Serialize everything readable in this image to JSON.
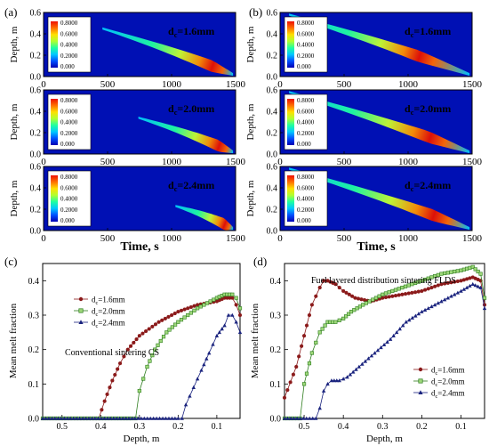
{
  "panel_labels": {
    "a": "(a)",
    "b": "(b)",
    "c": "(c)",
    "d": "(d)"
  },
  "colors": {
    "map_background": "#0010b4",
    "colorbar": [
      "#0000b4",
      "#0050ff",
      "#00c8ff",
      "#20ffa0",
      "#b0ff30",
      "#ffe000",
      "#ff7000",
      "#ee1000"
    ],
    "series": [
      "#8b1a1a",
      "#2e7d1e",
      "#1a237e"
    ]
  },
  "heatmaps": {
    "xlabel": "Time, s",
    "ylabel": "Depth, m",
    "x_ticks": [
      "0",
      "500",
      "1000",
      "1500"
    ],
    "y_ticks": [
      "0.0",
      "0.2",
      "0.4",
      "0.6"
    ],
    "colorbar_ticks": [
      "0.8000",
      "0.6000",
      "0.4000",
      "0.2000",
      "0.000"
    ],
    "colorbar_range": [
      0,
      0.8
    ],
    "panels": [
      {
        "id": "a1",
        "column": "a",
        "label": "dc=1.6mm",
        "band": {
          "start": [
            460,
            0.45
          ],
          "end": [
            1480,
            0.02
          ],
          "peak_at": 0.84
        }
      },
      {
        "id": "a2",
        "column": "a",
        "label": "dc=2.0mm",
        "band": {
          "start": [
            740,
            0.34
          ],
          "end": [
            1480,
            0.02
          ],
          "peak_at": 0.85
        }
      },
      {
        "id": "a3",
        "column": "a",
        "label": "dc=2.4mm",
        "band": {
          "start": [
            1030,
            0.23
          ],
          "end": [
            1480,
            0.02
          ],
          "peak_at": 0.85
        }
      },
      {
        "id": "b1",
        "column": "b",
        "label": "dc=1.6mm",
        "band": {
          "start": [
            70,
            0.58
          ],
          "end": [
            1480,
            0.02
          ],
          "peak_at": 0.72
        }
      },
      {
        "id": "b2",
        "column": "b",
        "label": "dc=2.0mm",
        "band": {
          "start": [
            70,
            0.58
          ],
          "end": [
            1480,
            0.02
          ],
          "peak_at": 0.78
        }
      },
      {
        "id": "b3",
        "column": "b",
        "label": "dc=2.4mm",
        "band": {
          "start": [
            70,
            0.58
          ],
          "end": [
            1480,
            0.02
          ],
          "peak_at": 0.8
        }
      }
    ]
  },
  "chart_data": [
    {
      "type": "line",
      "panel": "c",
      "annotation": "Conventional sintering CS",
      "xlabel": "Depth, m",
      "ylabel": "Mean melt fraction",
      "xlim": [
        0.55,
        0.04
      ],
      "ylim": [
        0.0,
        0.45
      ],
      "x_ticks": [
        0.5,
        0.4,
        0.3,
        0.2,
        0.1
      ],
      "y_ticks": [
        0.0,
        0.1,
        0.2,
        0.3,
        0.4
      ],
      "legend_position": "top-left",
      "series": [
        {
          "name": "dc=1.6mm",
          "marker": "circle",
          "points": [
            [
              0.55,
              0
            ],
            [
              0.42,
              0
            ],
            [
              0.405,
              0
            ],
            [
              0.39,
              0.05
            ],
            [
              0.37,
              0.11
            ],
            [
              0.35,
              0.16
            ],
            [
              0.33,
              0.2
            ],
            [
              0.3,
              0.24
            ],
            [
              0.25,
              0.28
            ],
            [
              0.2,
              0.31
            ],
            [
              0.15,
              0.33
            ],
            [
              0.1,
              0.34
            ],
            [
              0.08,
              0.35
            ],
            [
              0.06,
              0.35
            ],
            [
              0.05,
              0.33
            ],
            [
              0.04,
              0.3
            ]
          ]
        },
        {
          "name": "dc=2.0mm",
          "marker": "square",
          "points": [
            [
              0.55,
              0
            ],
            [
              0.32,
              0
            ],
            [
              0.31,
              0
            ],
            [
              0.3,
              0.08
            ],
            [
              0.28,
              0.15
            ],
            [
              0.26,
              0.2
            ],
            [
              0.23,
              0.25
            ],
            [
              0.2,
              0.28
            ],
            [
              0.15,
              0.32
            ],
            [
              0.1,
              0.35
            ],
            [
              0.08,
              0.36
            ],
            [
              0.06,
              0.36
            ],
            [
              0.05,
              0.35
            ],
            [
              0.04,
              0.32
            ]
          ]
        },
        {
          "name": "dc=2.4mm",
          "marker": "triangle",
          "points": [
            [
              0.55,
              0
            ],
            [
              0.2,
              0
            ],
            [
              0.19,
              0
            ],
            [
              0.18,
              0.04
            ],
            [
              0.16,
              0.09
            ],
            [
              0.14,
              0.14
            ],
            [
              0.12,
              0.19
            ],
            [
              0.1,
              0.24
            ],
            [
              0.08,
              0.27
            ],
            [
              0.07,
              0.3
            ],
            [
              0.06,
              0.3
            ],
            [
              0.05,
              0.28
            ],
            [
              0.04,
              0.25
            ]
          ]
        }
      ]
    },
    {
      "type": "line",
      "panel": "d",
      "annotation": "Fuel layered distribution sintering FLDS",
      "xlabel": "Depth, m",
      "ylabel": "Mean melt fraction",
      "xlim": [
        0.55,
        0.04
      ],
      "ylim": [
        0.0,
        0.45
      ],
      "x_ticks": [
        0.5,
        0.4,
        0.3,
        0.2,
        0.1
      ],
      "y_ticks": [
        0.0,
        0.1,
        0.2,
        0.3,
        0.4
      ],
      "legend_position": "bottom-right",
      "series": [
        {
          "name": "dc=1.6mm",
          "marker": "circle",
          "points": [
            [
              0.55,
              0.06
            ],
            [
              0.52,
              0.15
            ],
            [
              0.5,
              0.24
            ],
            [
              0.48,
              0.33
            ],
            [
              0.46,
              0.38
            ],
            [
              0.45,
              0.4
            ],
            [
              0.44,
              0.4
            ],
            [
              0.42,
              0.39
            ],
            [
              0.4,
              0.37
            ],
            [
              0.37,
              0.35
            ],
            [
              0.33,
              0.34
            ],
            [
              0.3,
              0.35
            ],
            [
              0.25,
              0.36
            ],
            [
              0.2,
              0.37
            ],
            [
              0.15,
              0.39
            ],
            [
              0.1,
              0.4
            ],
            [
              0.07,
              0.41
            ],
            [
              0.05,
              0.4
            ],
            [
              0.04,
              0.33
            ]
          ]
        },
        {
          "name": "dc=2.0mm",
          "marker": "square",
          "points": [
            [
              0.55,
              0
            ],
            [
              0.51,
              0
            ],
            [
              0.5,
              0.1
            ],
            [
              0.48,
              0.19
            ],
            [
              0.46,
              0.25
            ],
            [
              0.44,
              0.28
            ],
            [
              0.42,
              0.28
            ],
            [
              0.4,
              0.29
            ],
            [
              0.38,
              0.31
            ],
            [
              0.35,
              0.33
            ],
            [
              0.3,
              0.36
            ],
            [
              0.25,
              0.38
            ],
            [
              0.2,
              0.4
            ],
            [
              0.15,
              0.42
            ],
            [
              0.1,
              0.43
            ],
            [
              0.07,
              0.44
            ],
            [
              0.05,
              0.42
            ],
            [
              0.04,
              0.35
            ]
          ]
        },
        {
          "name": "dc=2.4mm",
          "marker": "triangle",
          "points": [
            [
              0.55,
              0
            ],
            [
              0.47,
              0
            ],
            [
              0.46,
              0.03
            ],
            [
              0.45,
              0.08
            ],
            [
              0.44,
              0.1
            ],
            [
              0.43,
              0.11
            ],
            [
              0.41,
              0.11
            ],
            [
              0.39,
              0.12
            ],
            [
              0.36,
              0.15
            ],
            [
              0.32,
              0.19
            ],
            [
              0.28,
              0.23
            ],
            [
              0.24,
              0.28
            ],
            [
              0.2,
              0.31
            ],
            [
              0.15,
              0.34
            ],
            [
              0.1,
              0.37
            ],
            [
              0.07,
              0.39
            ],
            [
              0.05,
              0.38
            ],
            [
              0.04,
              0.32
            ]
          ]
        }
      ]
    }
  ]
}
